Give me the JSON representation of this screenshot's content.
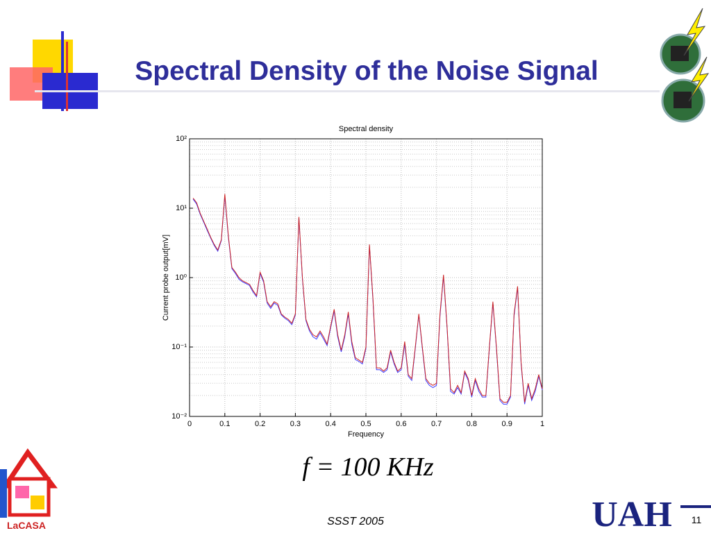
{
  "slide": {
    "title": "Spectral Density of the Noise Signal",
    "formula": "f = 100 KHz",
    "footer": "SSST 2005",
    "page_number": "11",
    "left_logo": "LaCASA",
    "right_logo": "UAH"
  },
  "chart_data": {
    "type": "line",
    "title": "Spectral density",
    "x_label": "Frequency",
    "y_label": "Current probe output[mV]",
    "x": [
      0.01,
      0.02,
      0.03,
      0.04,
      0.05,
      0.06,
      0.07,
      0.08,
      0.09,
      0.1,
      0.11,
      0.12,
      0.13,
      0.14,
      0.15,
      0.16,
      0.17,
      0.18,
      0.19,
      0.2,
      0.21,
      0.22,
      0.23,
      0.24,
      0.25,
      0.26,
      0.27,
      0.28,
      0.29,
      0.3,
      0.31,
      0.32,
      0.33,
      0.34,
      0.35,
      0.36,
      0.37,
      0.38,
      0.39,
      0.4,
      0.41,
      0.42,
      0.43,
      0.44,
      0.45,
      0.46,
      0.47,
      0.48,
      0.49,
      0.5,
      0.51,
      0.52,
      0.53,
      0.54,
      0.55,
      0.56,
      0.57,
      0.58,
      0.59,
      0.6,
      0.61,
      0.62,
      0.63,
      0.64,
      0.65,
      0.66,
      0.67,
      0.68,
      0.69,
      0.7,
      0.71,
      0.72,
      0.73,
      0.74,
      0.75,
      0.76,
      0.77,
      0.78,
      0.79,
      0.8,
      0.81,
      0.82,
      0.83,
      0.84,
      0.85,
      0.86,
      0.87,
      0.88,
      0.89,
      0.9,
      0.91,
      0.92,
      0.93,
      0.94,
      0.95,
      0.96,
      0.97,
      0.98,
      0.99,
      1.0
    ],
    "series": [
      {
        "color": "#3a3aff",
        "values": [
          13.5,
          11.5,
          8.2,
          6.3,
          4.8,
          3.7,
          2.9,
          2.4,
          3.4,
          15,
          3.8,
          1.35,
          1.15,
          0.95,
          0.87,
          0.82,
          0.77,
          0.62,
          0.53,
          1.15,
          0.86,
          0.43,
          0.36,
          0.43,
          0.4,
          0.29,
          0.26,
          0.24,
          0.21,
          0.29,
          7.2,
          0.95,
          0.24,
          0.17,
          0.14,
          0.13,
          0.16,
          0.13,
          0.105,
          0.19,
          0.33,
          0.14,
          0.085,
          0.14,
          0.3,
          0.11,
          0.066,
          0.062,
          0.057,
          0.095,
          2.9,
          0.47,
          0.047,
          0.047,
          0.043,
          0.047,
          0.085,
          0.057,
          0.043,
          0.047,
          0.11,
          0.038,
          0.033,
          0.095,
          0.29,
          0.095,
          0.033,
          0.028,
          0.026,
          0.028,
          0.28,
          1.05,
          0.19,
          0.023,
          0.021,
          0.026,
          0.021,
          0.043,
          0.033,
          0.019,
          0.033,
          0.023,
          0.019,
          0.019,
          0.095,
          0.43,
          0.095,
          0.017,
          0.015,
          0.015,
          0.019,
          0.28,
          0.72,
          0.057,
          0.015,
          0.028,
          0.017,
          0.023,
          0.038,
          0.024
        ]
      },
      {
        "color": "#cc2222",
        "values": [
          14,
          12,
          8.5,
          6.5,
          5,
          3.8,
          3,
          2.5,
          3.5,
          16,
          4,
          1.4,
          1.2,
          1.0,
          0.9,
          0.85,
          0.8,
          0.65,
          0.55,
          1.2,
          0.9,
          0.45,
          0.38,
          0.45,
          0.42,
          0.3,
          0.27,
          0.25,
          0.22,
          0.3,
          7.5,
          1.0,
          0.25,
          0.18,
          0.15,
          0.14,
          0.17,
          0.14,
          0.11,
          0.2,
          0.35,
          0.15,
          0.09,
          0.15,
          0.32,
          0.12,
          0.07,
          0.065,
          0.06,
          0.1,
          3.0,
          0.5,
          0.05,
          0.05,
          0.045,
          0.05,
          0.09,
          0.06,
          0.045,
          0.05,
          0.12,
          0.04,
          0.035,
          0.1,
          0.3,
          0.1,
          0.035,
          0.03,
          0.028,
          0.03,
          0.3,
          1.1,
          0.2,
          0.025,
          0.022,
          0.028,
          0.022,
          0.045,
          0.035,
          0.02,
          0.035,
          0.025,
          0.02,
          0.02,
          0.1,
          0.45,
          0.1,
          0.018,
          0.016,
          0.016,
          0.02,
          0.3,
          0.75,
          0.06,
          0.016,
          0.03,
          0.018,
          0.025,
          0.04,
          0.025
        ]
      }
    ],
    "xlim": [
      0,
      1
    ],
    "xticks": [
      0,
      0.1,
      0.2,
      0.3,
      0.4,
      0.5,
      0.6,
      0.7,
      0.8,
      0.9,
      1
    ],
    "ylim": [
      0.01,
      100
    ],
    "yscale": "log",
    "yticks": [
      {
        "value": 0.01,
        "label": "10⁻²"
      },
      {
        "value": 0.1,
        "label": "10⁻¹"
      },
      {
        "value": 1,
        "label": "10⁰"
      },
      {
        "value": 10,
        "label": "10¹"
      },
      {
        "value": 100,
        "label": "10²"
      }
    ],
    "grid": true
  }
}
